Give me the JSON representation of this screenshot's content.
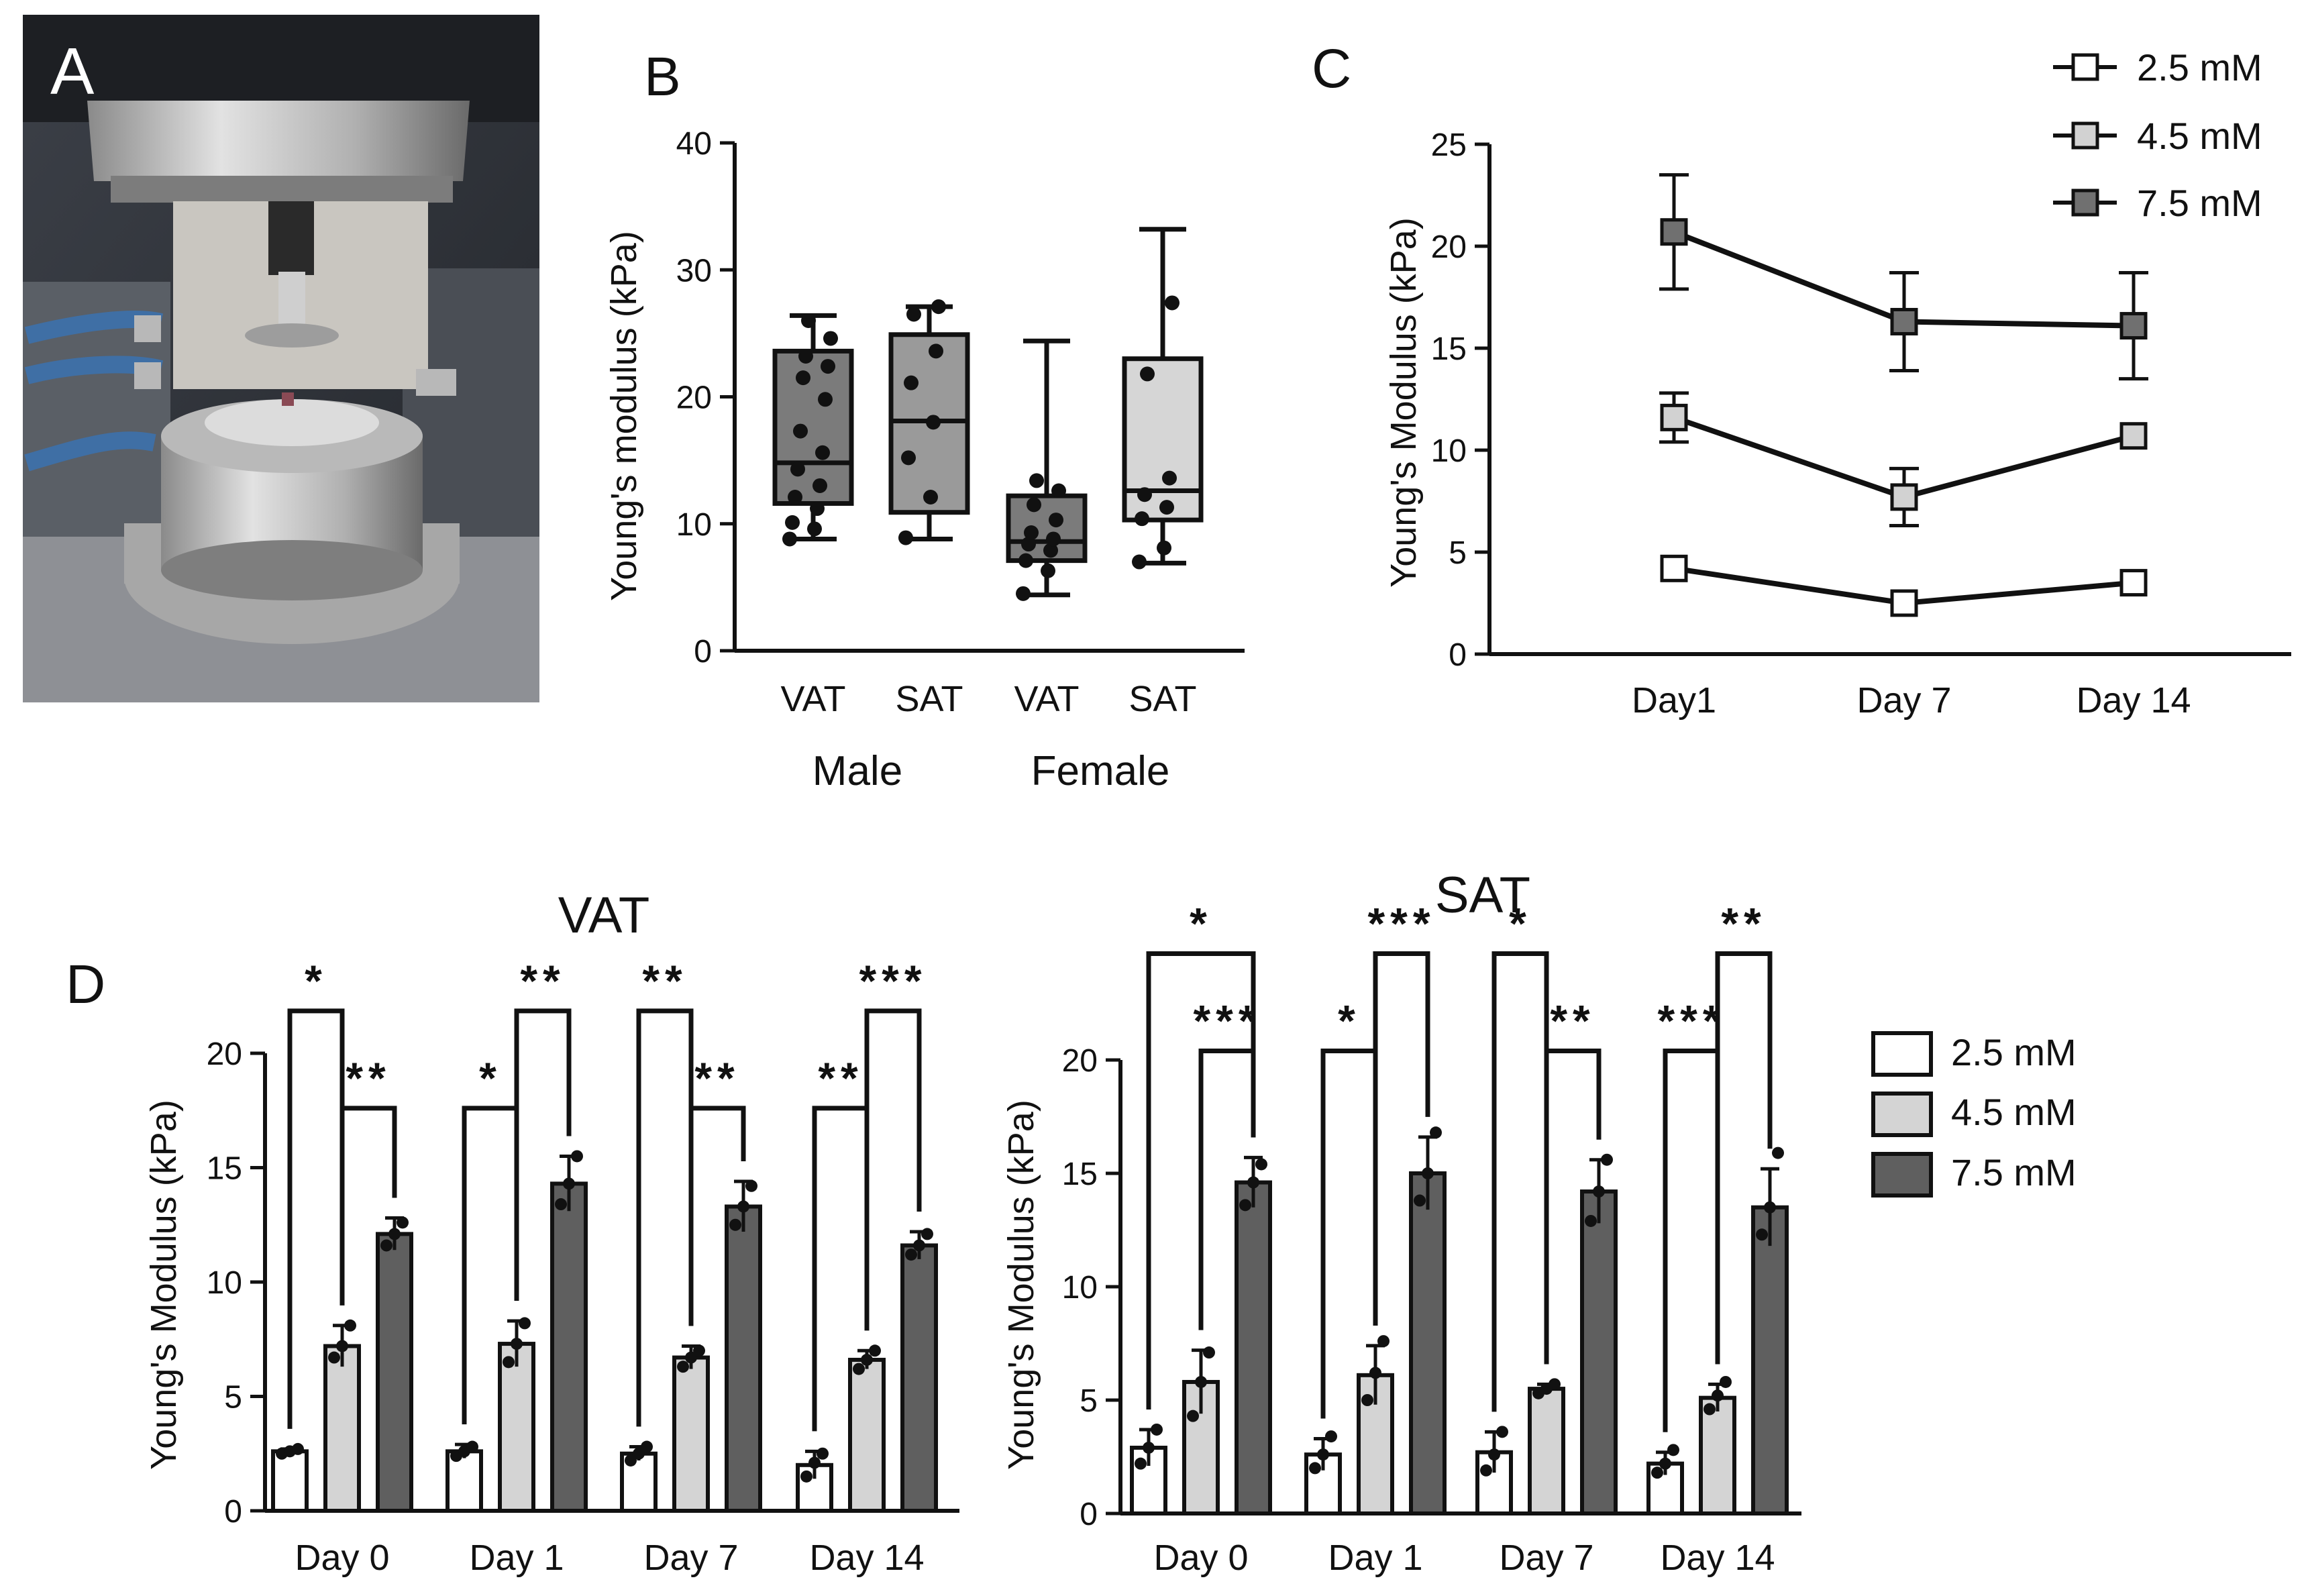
{
  "figure": {
    "panels": {
      "A": {
        "label": "A"
      },
      "B": {
        "label": "B"
      },
      "C": {
        "label": "C"
      },
      "D": {
        "label": "D"
      }
    }
  },
  "chart_data": [
    {
      "panel": "B",
      "type": "box",
      "ylabel": "Young's modulus (kPa)",
      "ylim": [
        0,
        40
      ],
      "yticks": [
        0,
        10,
        20,
        30,
        40
      ],
      "categories": [
        "VAT",
        "SAT",
        "VAT",
        "SAT"
      ],
      "groups": [
        {
          "label": "Male",
          "categories": [
            0,
            1
          ]
        },
        {
          "label": "Female",
          "categories": [
            2,
            3
          ]
        }
      ],
      "boxes": [
        {
          "category": "VAT",
          "group": "Male",
          "fill": "#7b7b7b",
          "min": 8.8,
          "q1": 11.6,
          "median": 14.8,
          "q3": 23.6,
          "max": 26.4,
          "points": [
            8.8,
            9.6,
            10.1,
            11.2,
            12.1,
            13.0,
            14.3,
            15.6,
            17.3,
            19.8,
            21.5,
            22.4,
            23.2,
            24.6,
            26.0
          ]
        },
        {
          "category": "SAT",
          "group": "Male",
          "fill": "#9a9a9a",
          "min": 8.8,
          "q1": 10.9,
          "median": 18.1,
          "q3": 24.9,
          "max": 27.1,
          "points": [
            8.9,
            12.1,
            15.2,
            18.0,
            21.1,
            23.6,
            26.5,
            27.1
          ]
        },
        {
          "category": "VAT",
          "group": "Female",
          "fill": "#7b7b7b",
          "min": 4.4,
          "q1": 7.1,
          "median": 8.6,
          "q3": 12.2,
          "max": 24.4,
          "points": [
            4.5,
            6.3,
            7.1,
            7.9,
            8.4,
            8.8,
            9.3,
            10.3,
            11.5,
            12.6,
            13.4
          ]
        },
        {
          "category": "SAT",
          "group": "Female",
          "fill": "#d6d6d6",
          "min": 6.9,
          "q1": 10.3,
          "median": 12.6,
          "q3": 23.0,
          "max": 33.2,
          "points": [
            7.0,
            8.1,
            10.4,
            11.3,
            12.3,
            13.6,
            21.8,
            27.4
          ]
        }
      ]
    },
    {
      "panel": "C",
      "type": "line",
      "ylabel": "Young's Modulus (kPa)",
      "ylim": [
        0,
        25
      ],
      "yticks": [
        0,
        5,
        10,
        15,
        20,
        25
      ],
      "categories": [
        "Day1",
        "Day 7",
        "Day 14"
      ],
      "series": [
        {
          "name": "2.5 mM",
          "fill": "#ffffff",
          "values": [
            4.2,
            2.5,
            3.5
          ],
          "err": [
            0.3,
            0.2,
            0.2
          ]
        },
        {
          "name": "4.5 mM",
          "fill": "#d2d2d2",
          "values": [
            11.6,
            7.7,
            10.7
          ],
          "err": [
            1.2,
            1.4,
            0.3
          ]
        },
        {
          "name": "7.5 mM",
          "fill": "#707070",
          "values": [
            20.7,
            16.3,
            16.1
          ],
          "err": [
            2.8,
            2.4,
            2.6
          ]
        }
      ]
    },
    {
      "panel": "D",
      "type": "bar",
      "title": "VAT",
      "ylabel": "Young's Modulus (kPa)",
      "ylim": [
        0,
        20
      ],
      "yticks": [
        0,
        5,
        10,
        15,
        20
      ],
      "categories": [
        "Day 0",
        "Day 1",
        "Day 7",
        "Day 14"
      ],
      "series": [
        {
          "name": "2.5 mM",
          "fill": "#ffffff",
          "values": [
            2.6,
            2.6,
            2.5,
            2.0
          ],
          "err": [
            0.1,
            0.3,
            0.3,
            0.6
          ],
          "points": [
            [
              2.5,
              2.6,
              2.7
            ],
            [
              2.4,
              2.6,
              2.8
            ],
            [
              2.2,
              2.5,
              2.8
            ],
            [
              1.5,
              2.1,
              2.5
            ]
          ]
        },
        {
          "name": "4.5 mM",
          "fill": "#d4d4d4",
          "values": [
            7.2,
            7.3,
            6.7,
            6.6
          ],
          "err": [
            0.9,
            1.0,
            0.5,
            0.4
          ],
          "points": [
            [
              6.7,
              7.2,
              8.1
            ],
            [
              6.5,
              7.3,
              8.2
            ],
            [
              6.3,
              6.7,
              7.0
            ],
            [
              6.2,
              6.6,
              7.0
            ]
          ]
        },
        {
          "name": "7.5 mM",
          "fill": "#5f5f5f",
          "values": [
            12.1,
            14.3,
            13.3,
            11.6
          ],
          "err": [
            0.7,
            1.2,
            1.1,
            0.6
          ],
          "points": [
            [
              11.6,
              12.1,
              12.6
            ],
            [
              13.4,
              14.3,
              15.5
            ],
            [
              12.5,
              13.3,
              14.2
            ],
            [
              11.2,
              11.6,
              12.1
            ]
          ]
        }
      ],
      "comparisons": [
        {
          "category": 0,
          "from": 0,
          "to": 1,
          "label": "*",
          "level": 2
        },
        {
          "category": 0,
          "from": 1,
          "to": 2,
          "label": "**",
          "level": 1
        },
        {
          "category": 1,
          "from": 0,
          "to": 1,
          "label": "*",
          "level": 1
        },
        {
          "category": 1,
          "from": 1,
          "to": 2,
          "label": "**",
          "level": 2
        },
        {
          "category": 2,
          "from": 0,
          "to": 1,
          "label": "**",
          "level": 2
        },
        {
          "category": 2,
          "from": 1,
          "to": 2,
          "label": "**",
          "level": 1
        },
        {
          "category": 3,
          "from": 0,
          "to": 1,
          "label": "**",
          "level": 1
        },
        {
          "category": 3,
          "from": 1,
          "to": 2,
          "label": "***",
          "level": 2
        }
      ]
    },
    {
      "panel": "D",
      "type": "bar",
      "title": "SAT",
      "ylabel": "Young's Modulus (kPa)",
      "ylim": [
        0,
        20
      ],
      "yticks": [
        0,
        5,
        10,
        15,
        20
      ],
      "categories": [
        "Day 0",
        "Day 1",
        "Day 7",
        "Day 14"
      ],
      "series": [
        {
          "name": "2.5 mM",
          "fill": "#ffffff",
          "values": [
            2.9,
            2.6,
            2.7,
            2.2
          ],
          "err": [
            0.8,
            0.7,
            0.9,
            0.5
          ],
          "points": [
            [
              2.2,
              2.9,
              3.7
            ],
            [
              2.0,
              2.6,
              3.4
            ],
            [
              1.9,
              2.6,
              3.6
            ],
            [
              1.8,
              2.2,
              2.8
            ]
          ]
        },
        {
          "name": "4.5 mM",
          "fill": "#d4d4d4",
          "values": [
            5.8,
            6.1,
            5.5,
            5.1
          ],
          "err": [
            1.4,
            1.3,
            0.2,
            0.6
          ],
          "points": [
            [
              4.3,
              5.8,
              7.1
            ],
            [
              5.0,
              6.2,
              7.6
            ],
            [
              5.3,
              5.5,
              5.7
            ],
            [
              4.6,
              5.2,
              5.8
            ]
          ]
        },
        {
          "name": "7.5 mM",
          "fill": "#5f5f5f",
          "values": [
            14.6,
            15.0,
            14.2,
            13.5
          ],
          "err": [
            1.1,
            1.6,
            1.4,
            1.7
          ],
          "points": [
            [
              13.6,
              14.6,
              15.4
            ],
            [
              13.8,
              15.0,
              16.8
            ],
            [
              12.9,
              14.2,
              15.6
            ],
            [
              12.3,
              13.5,
              15.9
            ]
          ]
        }
      ],
      "comparisons": [
        {
          "category": 0,
          "from": 0,
          "to": 2,
          "label": "*",
          "level": 2
        },
        {
          "category": 0,
          "from": 1,
          "to": 2,
          "label": "***",
          "level": 1
        },
        {
          "category": 1,
          "from": 0,
          "to": 1,
          "label": "*",
          "level": 1
        },
        {
          "category": 1,
          "from": 1,
          "to": 2,
          "label": "***",
          "level": 2
        },
        {
          "category": 2,
          "from": 0,
          "to": 1,
          "label": "*",
          "level": 2
        },
        {
          "category": 2,
          "from": 1,
          "to": 2,
          "label": "**",
          "level": 1
        },
        {
          "category": 3,
          "from": 0,
          "to": 1,
          "label": "***",
          "level": 1
        },
        {
          "category": 3,
          "from": 1,
          "to": 2,
          "label": "**",
          "level": 2
        }
      ]
    }
  ]
}
